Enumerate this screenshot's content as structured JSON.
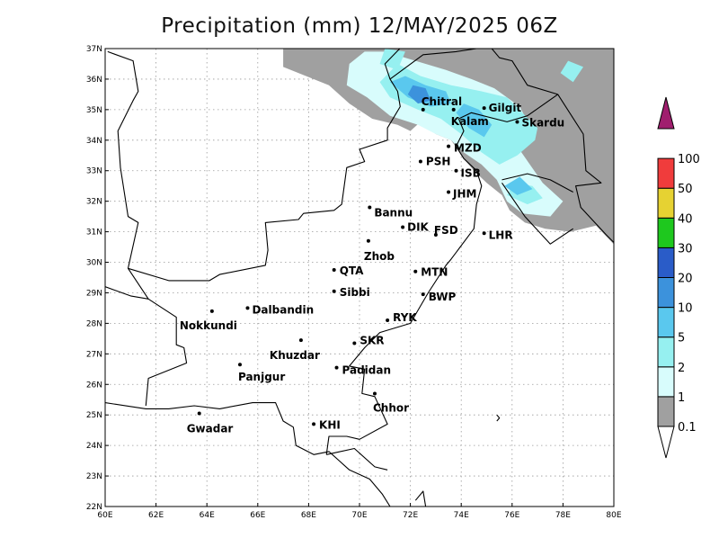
{
  "title": "Precipitation (mm) 12/MAY/2025 06Z",
  "map": {
    "lon_ticks": [
      "60E",
      "62E",
      "64E",
      "66E",
      "68E",
      "70E",
      "72E",
      "74E",
      "76E",
      "78E",
      "80E"
    ],
    "lat_ticks": [
      "22N",
      "23N",
      "24N",
      "25N",
      "26N",
      "27N",
      "28N",
      "29N",
      "30N",
      "31N",
      "32N",
      "33N",
      "34N",
      "35N",
      "36N",
      "37N"
    ],
    "lon_range": [
      60,
      80
    ],
    "lat_range": [
      22,
      37
    ],
    "grid": "dotted"
  },
  "cities": [
    {
      "name": "Chitral",
      "lon": 72.5,
      "lat": 35.0
    },
    {
      "name": "Gilgit",
      "lon": 74.9,
      "lat": 35.05
    },
    {
      "name": "Kalam",
      "lon": 73.7,
      "lat": 35.0
    },
    {
      "name": "Skardu",
      "lon": 76.2,
      "lat": 34.6
    },
    {
      "name": "MZD",
      "lon": 73.5,
      "lat": 33.8
    },
    {
      "name": "PSH",
      "lon": 72.4,
      "lat": 33.3
    },
    {
      "name": "ISB",
      "lon": 73.8,
      "lat": 33.0
    },
    {
      "name": "JHM",
      "lon": 73.5,
      "lat": 32.3
    },
    {
      "name": "Bannu",
      "lon": 70.4,
      "lat": 31.8
    },
    {
      "name": "DIK",
      "lon": 71.7,
      "lat": 31.15
    },
    {
      "name": "FSD",
      "lon": 73.0,
      "lat": 30.9
    },
    {
      "name": "LHR",
      "lon": 74.9,
      "lat": 30.95
    },
    {
      "name": "Zhob",
      "lon": 70.35,
      "lat": 30.7
    },
    {
      "name": "QTA",
      "lon": 69.0,
      "lat": 29.75
    },
    {
      "name": "MTN",
      "lon": 72.2,
      "lat": 29.7
    },
    {
      "name": "Sibbi",
      "lon": 69.0,
      "lat": 29.05
    },
    {
      "name": "BWP",
      "lon": 72.5,
      "lat": 28.95
    },
    {
      "name": "Dalbandin",
      "lon": 65.6,
      "lat": 28.5
    },
    {
      "name": "Nokkundi",
      "lon": 64.2,
      "lat": 28.4
    },
    {
      "name": "RYK",
      "lon": 71.1,
      "lat": 28.1
    },
    {
      "name": "Khuzdar",
      "lon": 67.7,
      "lat": 27.45
    },
    {
      "name": "SKR",
      "lon": 69.8,
      "lat": 27.35
    },
    {
      "name": "Panjgur",
      "lon": 65.3,
      "lat": 26.65
    },
    {
      "name": "Padidan",
      "lon": 69.1,
      "lat": 26.55
    },
    {
      "name": "Chhor",
      "lon": 70.6,
      "lat": 25.7
    },
    {
      "name": "Gwadar",
      "lon": 63.7,
      "lat": 25.05
    },
    {
      "name": "KHI",
      "lon": 68.2,
      "lat": 24.7
    }
  ],
  "colorbar": {
    "levels": [
      "0.1",
      "1",
      "2",
      "5",
      "10",
      "20",
      "30",
      "40",
      "50",
      "100"
    ],
    "colors": [
      "#a0a0a0",
      "#d8fcfc",
      "#96f0f0",
      "#5ac8ee",
      "#3c92dc",
      "#2a5cc8",
      "#1ec81e",
      "#e6d232",
      "#f03c3c",
      "#a01e6e"
    ],
    "under_color": "#ffffff",
    "over_color": "#a01e6e"
  }
}
